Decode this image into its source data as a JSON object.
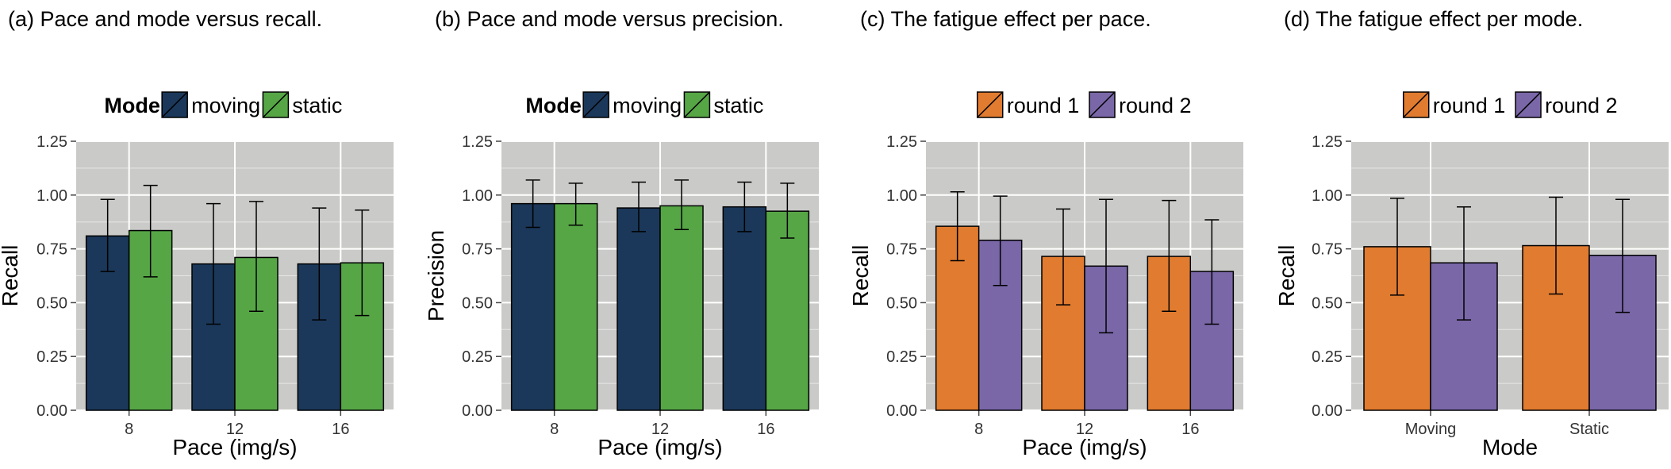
{
  "colors": {
    "moving": "#1B385A",
    "static": "#56A646",
    "round1": "#E07B2F",
    "round2": "#7A67A8",
    "panel_bg": "#CACAC8",
    "grid": "#FFFFFF"
  },
  "chart_data": [
    {
      "type": "bar",
      "title": "(a) Pace and mode versus recall.",
      "xlabel": "Pace (img/s)",
      "ylabel": "Recall",
      "ylim": [
        0,
        1.25
      ],
      "yticks": [
        "0.00",
        "0.25",
        "0.50",
        "0.75",
        "1.00",
        "1.25"
      ],
      "legend_title": "Mode",
      "legend_position": "top",
      "grid": true,
      "categories": [
        "8",
        "12",
        "16"
      ],
      "series": [
        {
          "name": "moving",
          "color_key": "moving",
          "values": [
            0.81,
            0.68,
            0.68
          ],
          "err_low": [
            0.645,
            0.4,
            0.42
          ],
          "err_high": [
            0.98,
            0.96,
            0.94
          ]
        },
        {
          "name": "static",
          "color_key": "static",
          "values": [
            0.835,
            0.71,
            0.685
          ],
          "err_low": [
            0.62,
            0.46,
            0.44
          ],
          "err_high": [
            1.045,
            0.97,
            0.93
          ]
        }
      ]
    },
    {
      "type": "bar",
      "title": "(b) Pace and mode versus precision.",
      "xlabel": "Pace (img/s)",
      "ylabel": "Precision",
      "ylim": [
        0,
        1.25
      ],
      "yticks": [
        "0.00",
        "0.25",
        "0.50",
        "0.75",
        "1.00",
        "1.25"
      ],
      "legend_title": "Mode",
      "legend_position": "top",
      "grid": true,
      "categories": [
        "8",
        "12",
        "16"
      ],
      "series": [
        {
          "name": "moving",
          "color_key": "moving",
          "values": [
            0.96,
            0.94,
            0.945
          ],
          "err_low": [
            0.85,
            0.83,
            0.83
          ],
          "err_high": [
            1.07,
            1.06,
            1.06
          ]
        },
        {
          "name": "static",
          "color_key": "static",
          "values": [
            0.96,
            0.95,
            0.925
          ],
          "err_low": [
            0.86,
            0.84,
            0.8
          ],
          "err_high": [
            1.055,
            1.07,
            1.055
          ]
        }
      ]
    },
    {
      "type": "bar",
      "title": "(c) The fatigue effect per pace.",
      "xlabel": "Pace (img/s)",
      "ylabel": "Recall",
      "ylim": [
        0,
        1.25
      ],
      "yticks": [
        "0.00",
        "0.25",
        "0.50",
        "0.75",
        "1.00",
        "1.25"
      ],
      "legend_title": "",
      "legend_position": "top",
      "grid": true,
      "categories": [
        "8",
        "12",
        "16"
      ],
      "series": [
        {
          "name": "round 1",
          "color_key": "round1",
          "values": [
            0.855,
            0.715,
            0.715
          ],
          "err_low": [
            0.695,
            0.49,
            0.46
          ],
          "err_high": [
            1.015,
            0.935,
            0.975
          ]
        },
        {
          "name": "round 2",
          "color_key": "round2",
          "values": [
            0.79,
            0.67,
            0.645
          ],
          "err_low": [
            0.58,
            0.36,
            0.4
          ],
          "err_high": [
            0.995,
            0.98,
            0.885
          ]
        }
      ]
    },
    {
      "type": "bar",
      "title": "(d) The fatigue effect per mode.",
      "xlabel": "Mode",
      "ylabel": "Recall",
      "ylim": [
        0,
        1.25
      ],
      "yticks": [
        "0.00",
        "0.25",
        "0.50",
        "0.75",
        "1.00",
        "1.25"
      ],
      "legend_title": "",
      "legend_position": "top",
      "grid": true,
      "categories": [
        "Moving",
        "Static"
      ],
      "series": [
        {
          "name": "round 1",
          "color_key": "round1",
          "values": [
            0.76,
            0.765
          ],
          "err_low": [
            0.535,
            0.54
          ],
          "err_high": [
            0.985,
            0.99
          ]
        },
        {
          "name": "round 2",
          "color_key": "round2",
          "values": [
            0.685,
            0.72
          ],
          "err_low": [
            0.42,
            0.455
          ],
          "err_high": [
            0.945,
            0.98
          ]
        }
      ]
    }
  ]
}
